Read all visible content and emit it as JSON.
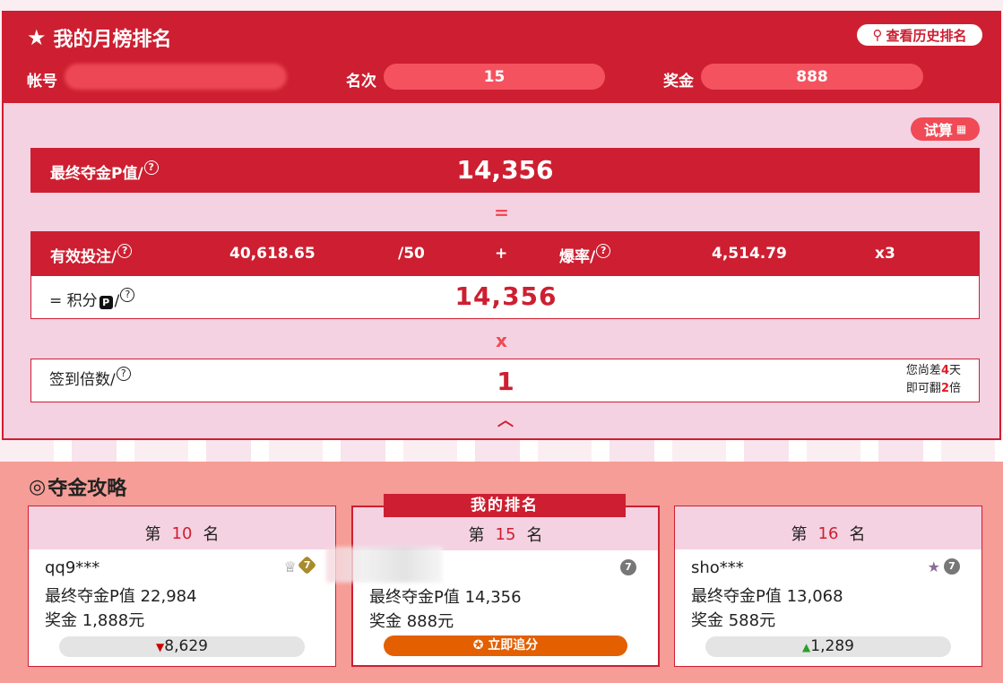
{
  "header": {
    "title": "我的月榜排名",
    "history_button": "查看历史排名",
    "account_label": "帐号",
    "rank_label": "名次",
    "rank_value": "15",
    "bonus_label": "奖金",
    "bonus_value": "888"
  },
  "calc": {
    "trial_button": "试算",
    "final_label": "最终夺金P值/",
    "final_value": "14,356",
    "equals": "=",
    "bet_label": "有效投注/",
    "bet_value": "40,618.65",
    "bet_divisor": "/50",
    "plus": "+",
    "burst_label": "爆率/",
    "burst_value": "4,514.79",
    "burst_mult": "x3",
    "points_prefix": "=  积分",
    "points_suffix": "/",
    "points_value": "14,356",
    "times": "x",
    "signin_label": "签到倍数/",
    "signin_value": "1",
    "note1_a": "您尚差",
    "note1_b": "4",
    "note1_c": "天",
    "note2_a": "即可翻",
    "note2_b": "2",
    "note2_c": "倍"
  },
  "strategy": {
    "title": "夺金攻略",
    "my_rank_tag": "我的排名",
    "cards": [
      {
        "prefix": "第",
        "rank": "10",
        "suffix": "名",
        "name": "qq9***",
        "pvalue": "最终夺金P值 22,984",
        "bonus": "奖金 1,888元",
        "diff": "8,629",
        "dir": "down"
      },
      {
        "prefix": "第",
        "rank": "15",
        "suffix": "名",
        "name": "",
        "pvalue": "最终夺金P值 14,356",
        "bonus": "奖金 888元",
        "action": "立即追分"
      },
      {
        "prefix": "第",
        "rank": "16",
        "suffix": "名",
        "name": "sho***",
        "pvalue": "最终夺金P值 13,068",
        "bonus": "奖金 588元",
        "diff": "1,289",
        "dir": "up"
      }
    ]
  },
  "colors": {
    "primary": "#cd1f31",
    "pill": "#f5525f",
    "panel": "#f5d2e2",
    "section": "#f59d96",
    "action": "#e35f00",
    "down": "#cc0000",
    "up": "#2a9d2a"
  }
}
